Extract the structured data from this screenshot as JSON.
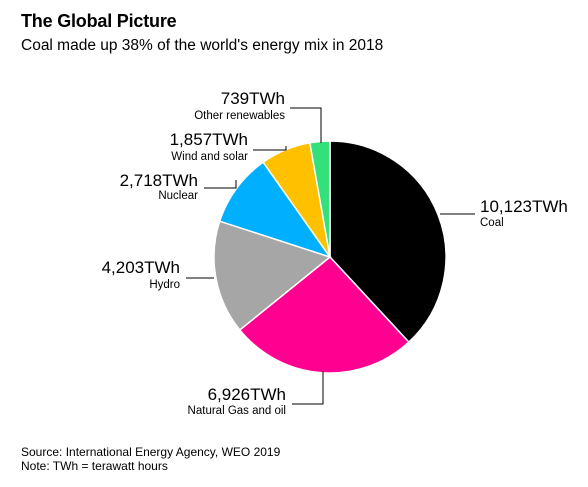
{
  "header": {
    "title": "The Global Picture",
    "subtitle": "Coal made up 38% of the world's energy mix in 2018"
  },
  "footer": {
    "source": "Source: International Energy Agency, WEO 2019",
    "note": "Note: TWh = terawatt hours"
  },
  "chart_data": {
    "type": "pie",
    "title": "The Global Picture",
    "subtitle": "Coal made up 38% of the world's energy mix in 2018",
    "unit": "TWh",
    "slices": [
      {
        "name": "Coal",
        "value": 10123,
        "value_label": "10,123TWh",
        "color": "#000000"
      },
      {
        "name": "Natural Gas and oil",
        "value": 6926,
        "value_label": "6,926TWh",
        "color": "#ff0090"
      },
      {
        "name": "Hydro",
        "value": 4203,
        "value_label": "4,203TWh",
        "color": "#a6a6a6"
      },
      {
        "name": "Nuclear",
        "value": 2718,
        "value_label": "2,718TWh",
        "color": "#00b0ff"
      },
      {
        "name": "Wind and solar",
        "value": 1857,
        "value_label": "1,857TWh",
        "color": "#ffc000"
      },
      {
        "name": "Other renewables",
        "value": 739,
        "value_label": "739TWh",
        "color": "#33e07a"
      }
    ]
  }
}
